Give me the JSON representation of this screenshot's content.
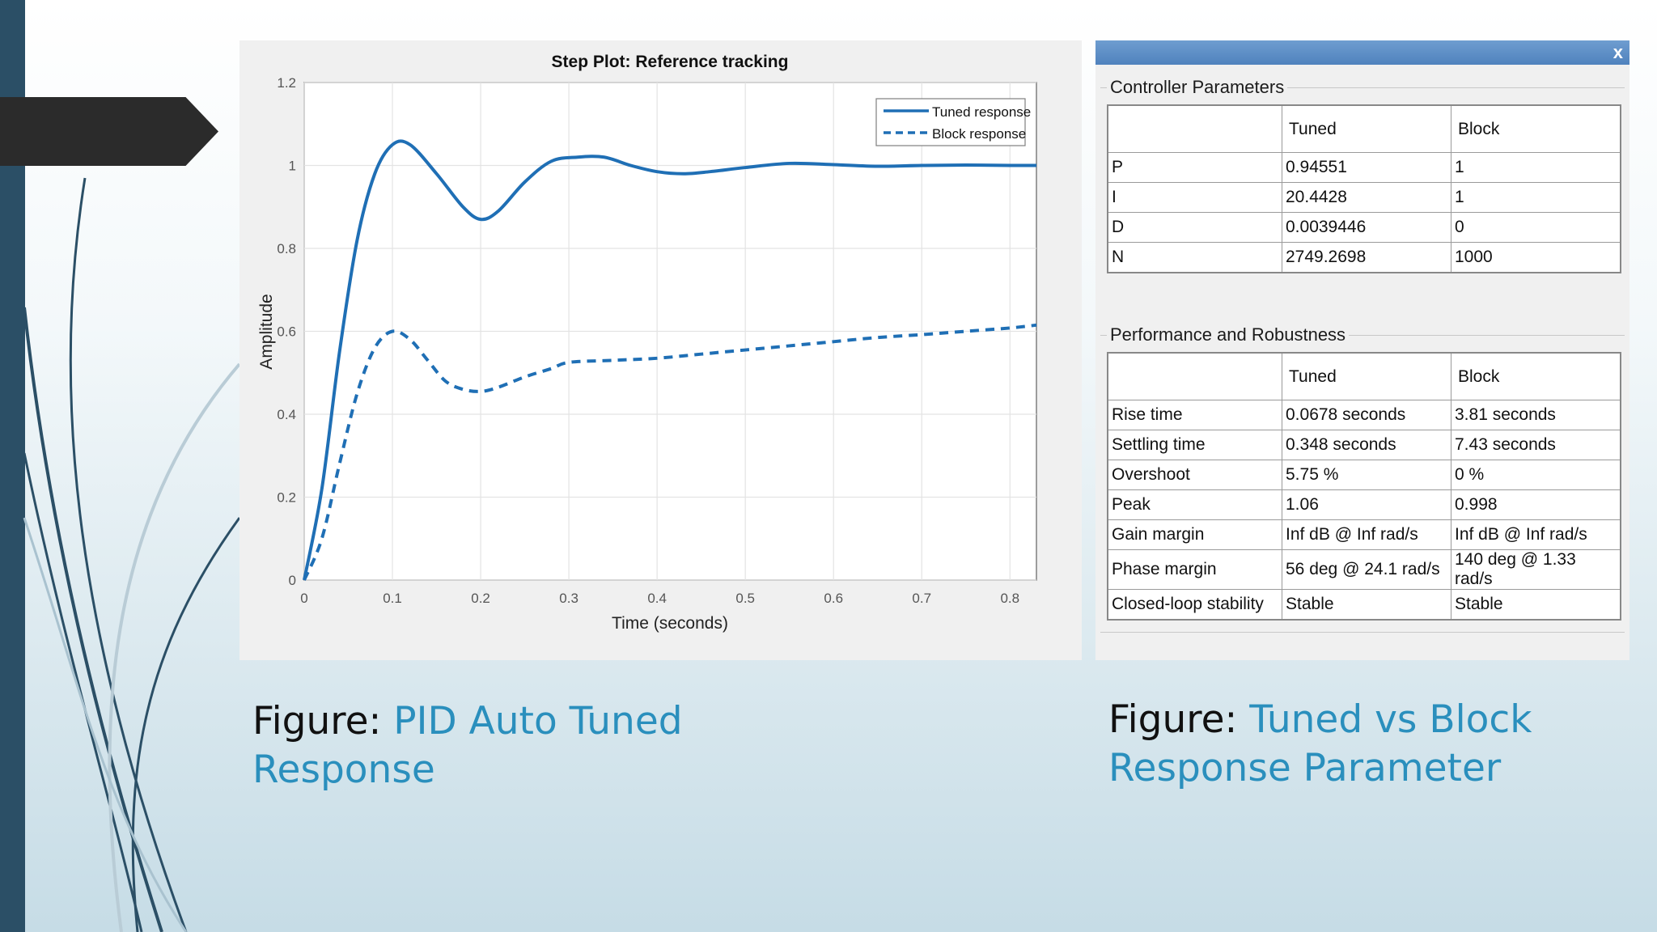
{
  "colors": {
    "accent": "#2a8fbd",
    "series": "#1f6fb5",
    "sidebar": "#2b4f66"
  },
  "chart_data": {
    "type": "line",
    "title": "Step Plot: Reference tracking",
    "xlabel": "Time (seconds)",
    "ylabel": "Amplitude",
    "xlim": [
      0,
      0.83
    ],
    "ylim": [
      0,
      1.2
    ],
    "xticks": [
      "0",
      "0.1",
      "0.2",
      "0.3",
      "0.4",
      "0.5",
      "0.6",
      "0.7",
      "0.8"
    ],
    "yticks": [
      "0",
      "0.2",
      "0.4",
      "0.6",
      "0.8",
      "1",
      "1.2"
    ],
    "grid": true,
    "legend_position": "top-right",
    "series": [
      {
        "name": "Tuned response",
        "style": "solid",
        "x": [
          0,
          0.02,
          0.04,
          0.06,
          0.08,
          0.1,
          0.12,
          0.15,
          0.18,
          0.2,
          0.22,
          0.25,
          0.28,
          0.31,
          0.34,
          0.37,
          0.4,
          0.43,
          0.46,
          0.5,
          0.55,
          0.6,
          0.65,
          0.7,
          0.75,
          0.8,
          0.83
        ],
        "y": [
          0,
          0.22,
          0.55,
          0.82,
          0.98,
          1.05,
          1.05,
          0.98,
          0.9,
          0.87,
          0.89,
          0.96,
          1.01,
          1.02,
          1.02,
          1.0,
          0.985,
          0.98,
          0.985,
          0.995,
          1.005,
          1.002,
          0.998,
          1.0,
          1.001,
          1.0,
          1.0
        ]
      },
      {
        "name": "Block response",
        "style": "dashed",
        "x": [
          0,
          0.02,
          0.04,
          0.06,
          0.08,
          0.1,
          0.12,
          0.14,
          0.16,
          0.18,
          0.2,
          0.22,
          0.25,
          0.28,
          0.3,
          0.35,
          0.4,
          0.45,
          0.5,
          0.55,
          0.6,
          0.65,
          0.7,
          0.75,
          0.8,
          0.83
        ],
        "y": [
          0,
          0.1,
          0.28,
          0.45,
          0.56,
          0.6,
          0.58,
          0.53,
          0.48,
          0.46,
          0.455,
          0.465,
          0.49,
          0.51,
          0.525,
          0.53,
          0.535,
          0.545,
          0.555,
          0.565,
          0.575,
          0.585,
          0.592,
          0.6,
          0.608,
          0.615
        ]
      }
    ]
  },
  "dialog": {
    "close_label": "x",
    "controller": {
      "title": "Controller Parameters",
      "headers": [
        "",
        "Tuned",
        "Block"
      ],
      "rows": [
        [
          "P",
          "0.94551",
          "1"
        ],
        [
          "I",
          "20.4428",
          "1"
        ],
        [
          "D",
          "0.0039446",
          "0"
        ],
        [
          "N",
          "2749.2698",
          "1000"
        ]
      ]
    },
    "performance": {
      "title": "Performance and Robustness",
      "headers": [
        "",
        "Tuned",
        "Block"
      ],
      "rows": [
        [
          "Rise time",
          "0.0678 seconds",
          "3.81 seconds"
        ],
        [
          "Settling time",
          "0.348 seconds",
          "7.43 seconds"
        ],
        [
          "Overshoot",
          "5.75 %",
          "0 %"
        ],
        [
          "Peak",
          "1.06",
          "0.998"
        ],
        [
          "Gain margin",
          "Inf dB @ Inf rad/s",
          "Inf dB @ Inf rad/s"
        ],
        [
          "Phase margin",
          "56 deg @ 24.1 rad/s",
          "140 deg @ 1.33 rad/s"
        ],
        [
          "Closed-loop stability",
          "Stable",
          "Stable"
        ]
      ]
    }
  },
  "captions": {
    "left": {
      "prefix": "Figure: ",
      "text": "PID Auto Tuned Response"
    },
    "right": {
      "prefix": "Figure: ",
      "text": "Tuned vs Block Response Parameter"
    }
  }
}
